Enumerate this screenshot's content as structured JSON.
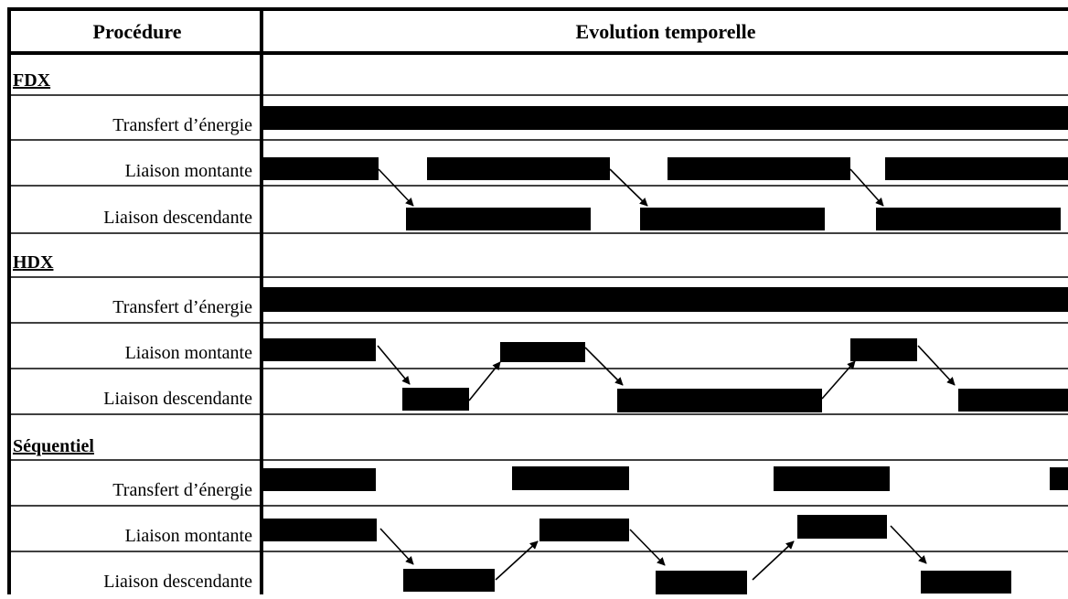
{
  "headers": {
    "procedure": "Procédure",
    "evolution": "Evolution temporelle"
  },
  "sections": [
    {
      "title": "FDX",
      "rows": [
        {
          "label": "Transfert d’énergie"
        },
        {
          "label": "Liaison montante"
        },
        {
          "label": "Liaison descendante"
        }
      ]
    },
    {
      "title": "HDX",
      "rows": [
        {
          "label": "Transfert d’énergie"
        },
        {
          "label": "Liaison montante"
        },
        {
          "label": "Liaison descendante"
        }
      ]
    },
    {
      "title": "Séquentiel",
      "rows": [
        {
          "label": "Transfert d’énergie"
        },
        {
          "label": "Liaison montante"
        },
        {
          "label": "Liaison descendante"
        }
      ]
    }
  ],
  "colors": {
    "bar": "#000000",
    "line": "#000000",
    "background": "#ffffff"
  }
}
